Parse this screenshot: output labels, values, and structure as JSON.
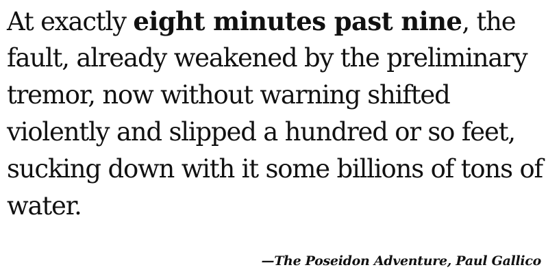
{
  "quote": {
    "line1_before": "At exactly ",
    "line1_emphasis": "eight minutes past nine",
    "line1_after": ", the",
    "line2": "fault, already weakened by the preliminary",
    "line3": "tremor, now without warning shifted",
    "line4": "violently and slipped a hundred or so feet,",
    "line5": "sucking down with it some billions of tons of",
    "line6": "water."
  },
  "attribution": {
    "dash": "—",
    "book_title": "The Poseidon Adventure",
    "separator": ", ",
    "author": "Paul Gallico"
  }
}
